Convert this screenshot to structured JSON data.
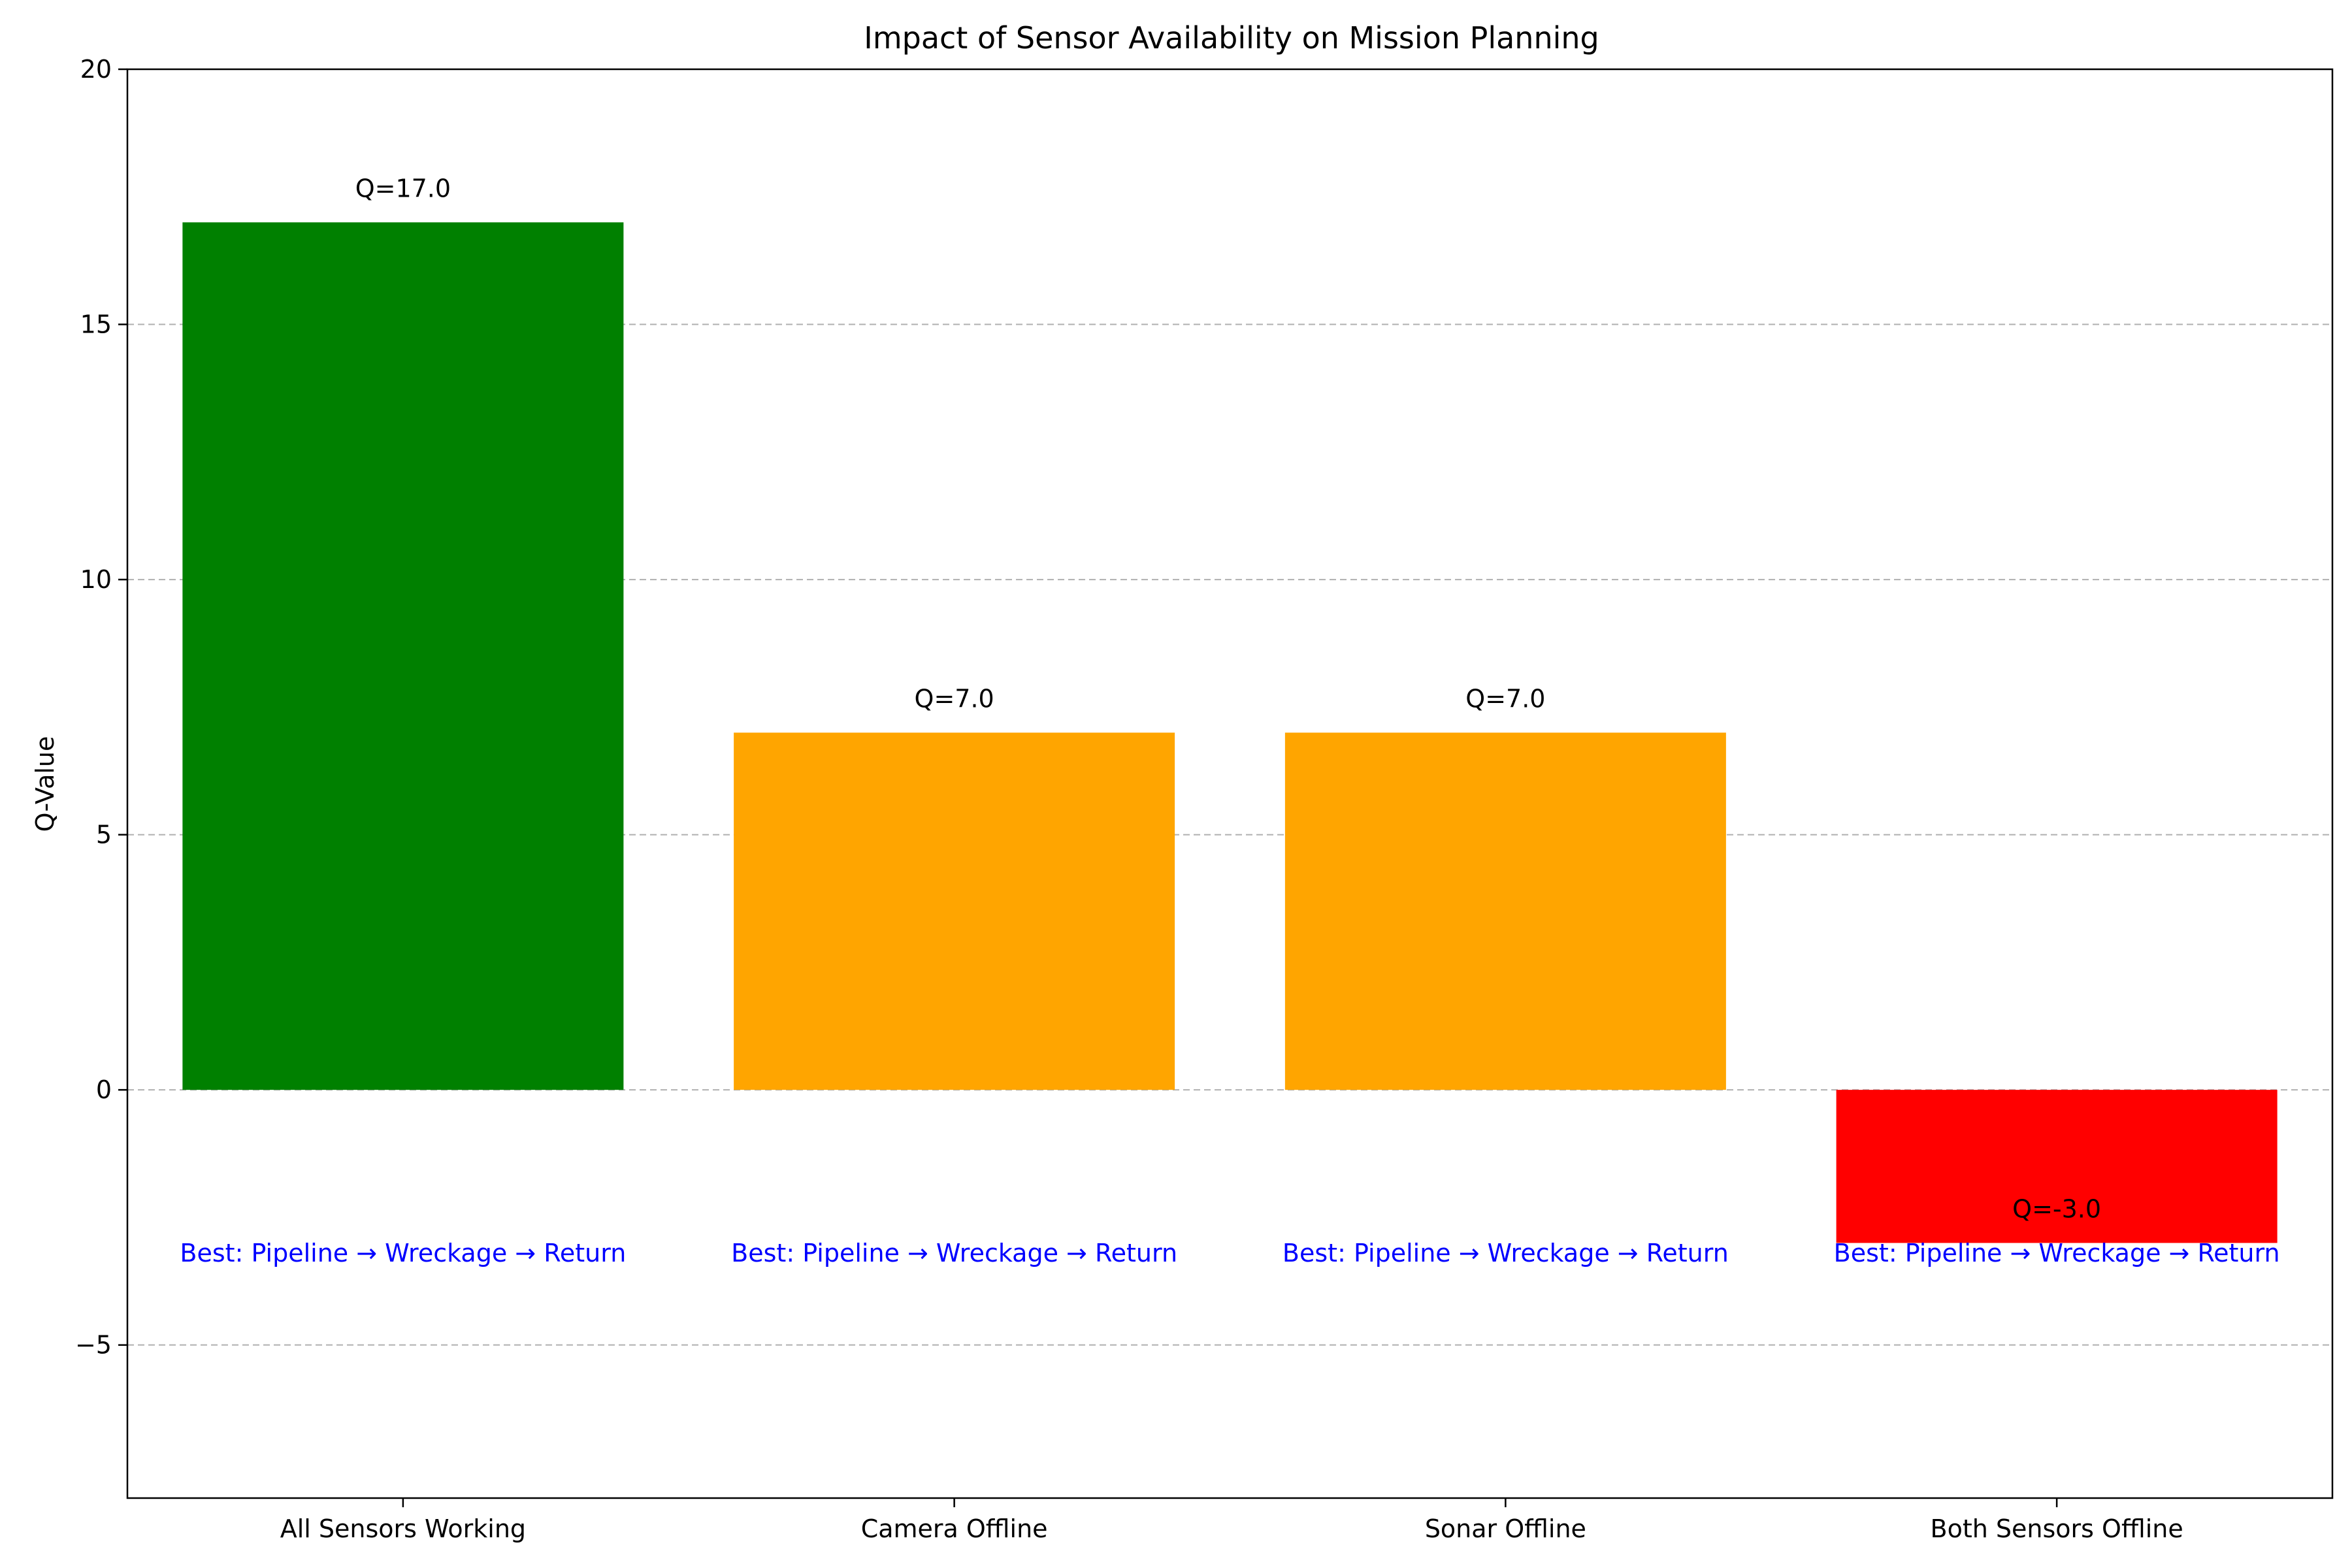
{
  "chart_data": {
    "type": "bar",
    "title": "Impact of Sensor Availability on Mission Planning",
    "xlabel": "",
    "ylabel": "Q-Value",
    "ylim": [
      -8,
      20
    ],
    "yticks": [
      -5,
      0,
      5,
      10,
      15,
      20
    ],
    "ytick_labels": [
      "−5",
      "0",
      "5",
      "10",
      "15",
      "20"
    ],
    "grid": "y-dashed",
    "categories": [
      "All Sensors Working",
      "Camera Offline",
      "Sonar Offline",
      "Both Sensors Offline"
    ],
    "values": [
      17.0,
      7.0,
      7.0,
      -3.0
    ],
    "colors": [
      "#008000",
      "#FFA500",
      "#FFA500",
      "#FF0000"
    ],
    "value_labels": [
      "Q=17.0",
      "Q=7.0",
      "Q=7.0",
      "Q=-3.0"
    ],
    "annotations": [
      "Best: Pipeline → Wreckage → Return",
      "Best: Pipeline → Wreckage → Return",
      "Best: Pipeline → Wreckage → Return",
      "Best: Pipeline → Wreckage → Return"
    ],
    "annotation_y": -3.2,
    "annotation_color": "#0000FF"
  }
}
